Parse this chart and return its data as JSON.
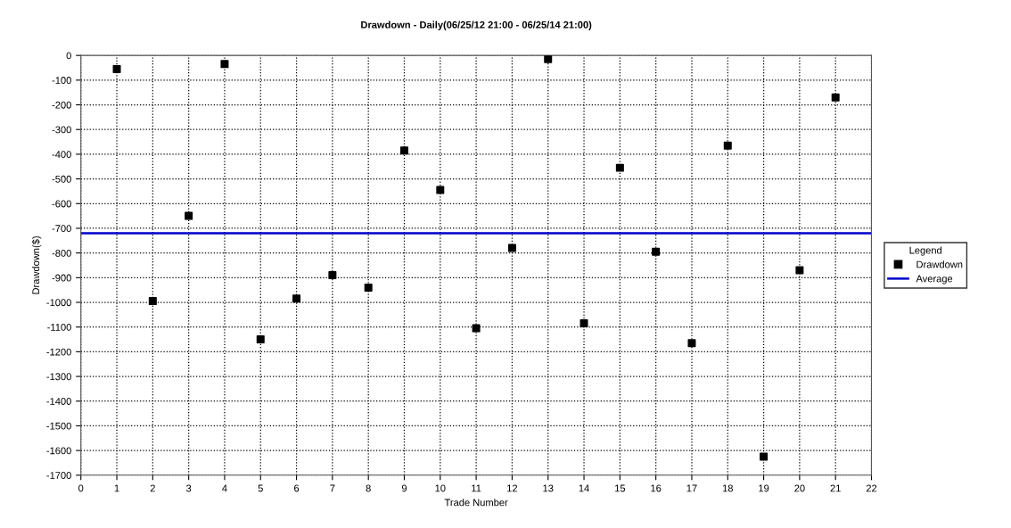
{
  "chart_data": {
    "type": "scatter",
    "title": "Drawdown - Daily(06/25/12 21:00 - 06/25/14 21:00)",
    "xlabel": "Trade Number",
    "ylabel": "Drawdown($)",
    "legend_title": "Legend",
    "x": [
      1,
      2,
      3,
      4,
      5,
      6,
      7,
      8,
      9,
      10,
      11,
      12,
      13,
      14,
      15,
      16,
      17,
      18,
      19,
      20,
      21
    ],
    "series": [
      {
        "name": "Drawdown",
        "color": "#000000",
        "values": [
          -55,
          -995,
          -650,
          -35,
          -1150,
          -985,
          -890,
          -940,
          -385,
          -545,
          -1105,
          -780,
          -15,
          -1085,
          -455,
          -795,
          -1165,
          -365,
          -1625,
          -870,
          -170
        ]
      }
    ],
    "ref_lines": [
      {
        "axis": "y",
        "value": -720,
        "label": "Average",
        "color": "#0000cc",
        "line_style": "solid"
      }
    ],
    "xlim": [
      0,
      22
    ],
    "xticks": [
      0,
      1,
      2,
      3,
      4,
      5,
      6,
      7,
      8,
      9,
      10,
      11,
      12,
      13,
      14,
      15,
      16,
      17,
      18,
      19,
      20,
      21,
      22
    ],
    "ylim": [
      -1700,
      0
    ],
    "yticks": [
      0,
      -100,
      -200,
      -300,
      -400,
      -500,
      -600,
      -700,
      -800,
      -900,
      -1000,
      -1100,
      -1200,
      -1300,
      -1400,
      -1500,
      -1600,
      -1700
    ],
    "grid": true,
    "legend": "right",
    "marker": "square"
  }
}
